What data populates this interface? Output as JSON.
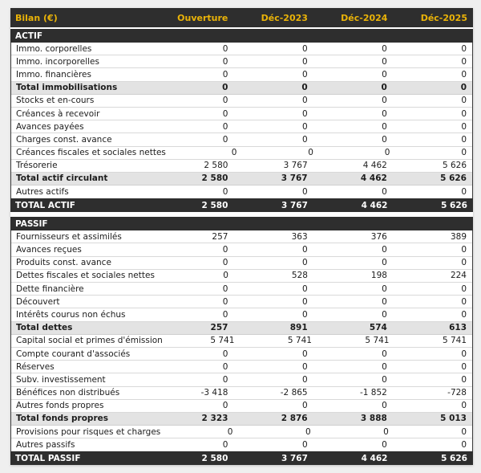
{
  "chart_data": {
    "type": "table",
    "title": "Bilan (€)",
    "columns": [
      "Ouverture",
      "Déc-2023",
      "Déc-2024",
      "Déc-2025"
    ],
    "sections": [
      {
        "name": "ACTIF",
        "rows": [
          {
            "label": "Immo. corporelles",
            "values": [
              "0",
              "0",
              "0",
              "0"
            ],
            "style": "normal"
          },
          {
            "label": "Immo. incorporelles",
            "values": [
              "0",
              "0",
              "0",
              "0"
            ],
            "style": "normal"
          },
          {
            "label": "Immo. financières",
            "values": [
              "0",
              "0",
              "0",
              "0"
            ],
            "style": "normal"
          },
          {
            "label": "Total immobilisations",
            "values": [
              "0",
              "0",
              "0",
              "0"
            ],
            "style": "subtotal"
          },
          {
            "label": "Stocks et en-cours",
            "values": [
              "0",
              "0",
              "0",
              "0"
            ],
            "style": "normal"
          },
          {
            "label": "Créances à recevoir",
            "values": [
              "0",
              "0",
              "0",
              "0"
            ],
            "style": "normal"
          },
          {
            "label": "Avances payées",
            "values": [
              "0",
              "0",
              "0",
              "0"
            ],
            "style": "normal"
          },
          {
            "label": "Charges const. avance",
            "values": [
              "0",
              "0",
              "0",
              "0"
            ],
            "style": "normal"
          },
          {
            "label": "Créances fiscales et sociales nettes",
            "values": [
              "0",
              "0",
              "0",
              "0"
            ],
            "style": "normal"
          },
          {
            "label": "Trésorerie",
            "values": [
              "2 580",
              "3 767",
              "4 462",
              "5 626"
            ],
            "style": "normal"
          },
          {
            "label": "Total actif circulant",
            "values": [
              "2 580",
              "3 767",
              "4 462",
              "5 626"
            ],
            "style": "subtotal"
          },
          {
            "label": "Autres actifs",
            "values": [
              "0",
              "0",
              "0",
              "0"
            ],
            "style": "normal"
          },
          {
            "label": "TOTAL ACTIF",
            "values": [
              "2 580",
              "3 767",
              "4 462",
              "5 626"
            ],
            "style": "total"
          }
        ]
      },
      {
        "name": "PASSIF",
        "rows": [
          {
            "label": "Fournisseurs et assimilés",
            "values": [
              "257",
              "363",
              "376",
              "389"
            ],
            "style": "normal"
          },
          {
            "label": "Avances reçues",
            "values": [
              "0",
              "0",
              "0",
              "0"
            ],
            "style": "normal"
          },
          {
            "label": "Produits const. avance",
            "values": [
              "0",
              "0",
              "0",
              "0"
            ],
            "style": "normal"
          },
          {
            "label": "Dettes fiscales et sociales nettes",
            "values": [
              "0",
              "528",
              "198",
              "224"
            ],
            "style": "normal"
          },
          {
            "label": "Dette financière",
            "values": [
              "0",
              "0",
              "0",
              "0"
            ],
            "style": "normal"
          },
          {
            "label": "Découvert",
            "values": [
              "0",
              "0",
              "0",
              "0"
            ],
            "style": "normal"
          },
          {
            "label": "Intérêts courus non échus",
            "values": [
              "0",
              "0",
              "0",
              "0"
            ],
            "style": "normal"
          },
          {
            "label": "Total dettes",
            "values": [
              "257",
              "891",
              "574",
              "613"
            ],
            "style": "subtotal"
          },
          {
            "label": "Capital social et primes d'émission",
            "values": [
              "5 741",
              "5 741",
              "5 741",
              "5 741"
            ],
            "style": "normal"
          },
          {
            "label": "Compte courant d'associés",
            "values": [
              "0",
              "0",
              "0",
              "0"
            ],
            "style": "normal"
          },
          {
            "label": "Réserves",
            "values": [
              "0",
              "0",
              "0",
              "0"
            ],
            "style": "normal"
          },
          {
            "label": "Subv. investissement",
            "values": [
              "0",
              "0",
              "0",
              "0"
            ],
            "style": "normal"
          },
          {
            "label": "Bénéfices non distribués",
            "values": [
              "-3 418",
              "-2 865",
              "-1 852",
              "-728"
            ],
            "style": "normal"
          },
          {
            "label": "Autres fonds propres",
            "values": [
              "0",
              "0",
              "0",
              "0"
            ],
            "style": "normal"
          },
          {
            "label": "Total fonds propres",
            "values": [
              "2 323",
              "2 876",
              "3 888",
              "5 013"
            ],
            "style": "subtotal"
          },
          {
            "label": "Provisions pour risques et charges",
            "values": [
              "0",
              "0",
              "0",
              "0"
            ],
            "style": "normal"
          },
          {
            "label": "Autres passifs",
            "values": [
              "0",
              "0",
              "0",
              "0"
            ],
            "style": "normal"
          },
          {
            "label": "TOTAL PASSIF",
            "values": [
              "2 580",
              "3 767",
              "4 462",
              "5 626"
            ],
            "style": "total"
          }
        ]
      }
    ],
    "layout": {
      "legend": "none",
      "grid": "horizontal-row-separators"
    }
  },
  "colors": {
    "header_bg": "#2e2e2e",
    "header_text_accent": "#eab308",
    "section_header_bg": "#2e2e2e",
    "section_header_text": "#ffffff",
    "subtotal_row_bg": "#e3e3e3",
    "total_row_bg": "#2e2e2e",
    "total_row_text": "#ffffff",
    "row_bg": "#ffffff",
    "row_text": "#1c1c1c",
    "page_bg": "#efefef"
  }
}
